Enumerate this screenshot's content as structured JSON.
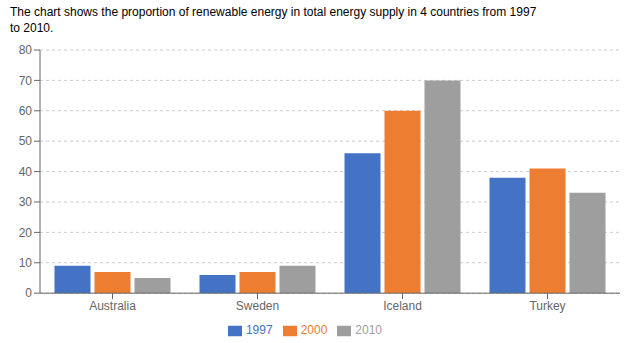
{
  "chart_data": {
    "type": "bar",
    "title": "The chart shows the proportion of renewable energy in total energy supply in 4 countries from 1997\nto 2010.",
    "categories": [
      "Australia",
      "Sweden",
      "Iceland",
      "Turkey"
    ],
    "series": [
      {
        "name": "1997",
        "color": "#4472C4",
        "values": [
          9,
          6,
          46,
          38
        ]
      },
      {
        "name": "2000",
        "color": "#ED7D31",
        "values": [
          7,
          7,
          60,
          41
        ]
      },
      {
        "name": "2010",
        "color": "#9E9E9E",
        "values": [
          5,
          9,
          70,
          33
        ]
      }
    ],
    "ylim": [
      0,
      80
    ],
    "yticks": [
      0,
      10,
      20,
      30,
      40,
      50,
      60,
      70,
      80
    ],
    "grid": true,
    "legend": "bottom"
  }
}
